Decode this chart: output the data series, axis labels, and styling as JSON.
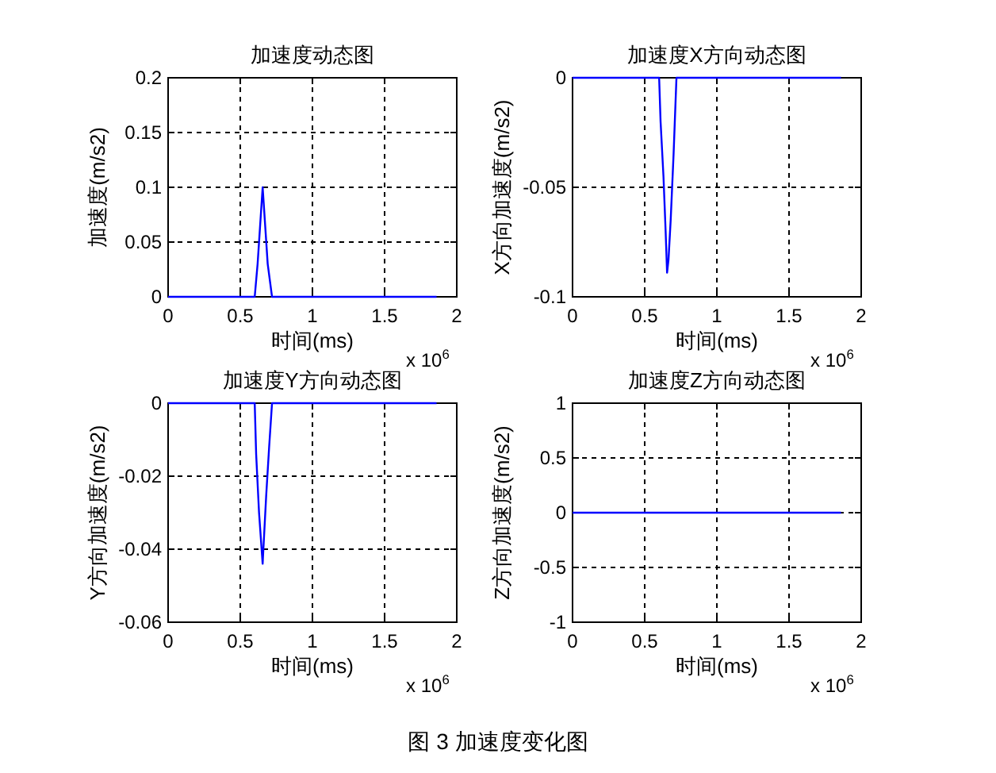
{
  "chart_data": [
    {
      "type": "line",
      "title": "加速度动态图",
      "xlabel": "时间(ms)",
      "ylabel": "加速度(m/s2)",
      "annotations": [
        "x 10$^{6}$"
      ],
      "xlim": [
        0,
        2
      ],
      "xticks": [
        0,
        0.5,
        1,
        1.5,
        2
      ],
      "ylim": [
        0,
        0.2
      ],
      "yticks": [
        0,
        0.05,
        0.1,
        0.15,
        0.2
      ],
      "grid": true,
      "series": [
        {
          "color": "#0000ff",
          "x": [
            0,
            0.6,
            0.62,
            0.64,
            0.655,
            0.67,
            0.69,
            0.72,
            1.86
          ],
          "values": [
            0,
            0,
            0.03,
            0.07,
            0.1,
            0.07,
            0.03,
            0,
            0
          ]
        }
      ]
    },
    {
      "type": "line",
      "title": "加速度X方向动态图",
      "xlabel": "时间(ms)",
      "ylabel": "X方向加速度(m/s2)",
      "annotations": [
        "x 10$^{6}$"
      ],
      "xlim": [
        0,
        2
      ],
      "xticks": [
        0,
        0.5,
        1,
        1.5,
        2
      ],
      "ylim": [
        -0.1,
        0
      ],
      "yticks": [
        -0.1,
        -0.05,
        0
      ],
      "grid": true,
      "series": [
        {
          "color": "#0000ff",
          "x": [
            0,
            0.6,
            0.61,
            0.63,
            0.645,
            0.655,
            0.665,
            0.68,
            0.7,
            0.72,
            1.86
          ],
          "values": [
            0,
            0,
            -0.02,
            -0.045,
            -0.07,
            -0.089,
            -0.083,
            -0.065,
            -0.035,
            0,
            0
          ]
        }
      ]
    },
    {
      "type": "line",
      "title": "加速度Y方向动态图",
      "xlabel": "时间(ms)",
      "ylabel": "Y方向加速度(m/s2)",
      "annotations": [
        "x 10$^{6}$"
      ],
      "xlim": [
        0,
        2
      ],
      "xticks": [
        0,
        0.5,
        1,
        1.5,
        2
      ],
      "ylim": [
        -0.06,
        0
      ],
      "yticks": [
        -0.06,
        -0.04,
        -0.02,
        0
      ],
      "grid": true,
      "series": [
        {
          "color": "#0000ff",
          "x": [
            0,
            0.6,
            0.61,
            0.63,
            0.655,
            0.66,
            0.68,
            0.7,
            0.72,
            1.86
          ],
          "values": [
            0,
            0,
            -0.014,
            -0.03,
            -0.044,
            -0.04,
            -0.025,
            -0.012,
            0,
            0
          ]
        }
      ]
    },
    {
      "type": "line",
      "title": "加速度Z方向动态图",
      "xlabel": "时间(ms)",
      "ylabel": "Z方向加速度(m/s2)",
      "annotations": [
        "x 10$^{6}$",
        "图 3  加速度变化图"
      ],
      "xlim": [
        0,
        2
      ],
      "xticks": [
        0,
        0.5,
        1,
        1.5,
        2
      ],
      "ylim": [
        -1,
        1
      ],
      "yticks": [
        -1,
        -0.5,
        0,
        0.5,
        1
      ],
      "grid": true,
      "series": [
        {
          "color": "#0000ff",
          "x": [
            0,
            1.86
          ],
          "values": [
            0,
            0
          ]
        }
      ]
    }
  ]
}
